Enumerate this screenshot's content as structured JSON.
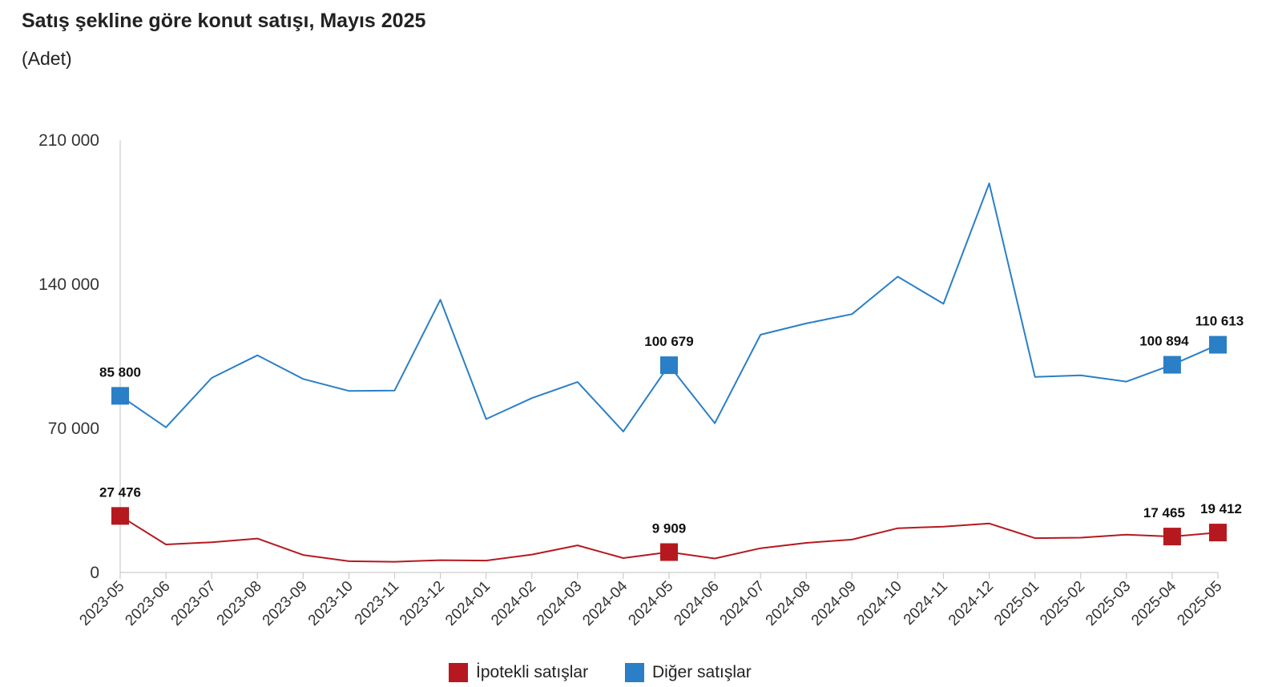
{
  "chart_data": {
    "type": "line",
    "title": "Satış şekline göre konut satışı, Mayıs 2025",
    "subtitle": "(Adet)",
    "xlabel": "",
    "ylabel": "",
    "ylim": [
      0,
      210000
    ],
    "yticks": [
      0,
      70000,
      140000,
      210000
    ],
    "ytick_labels": [
      "0",
      "70 000",
      "140 000",
      "210 000"
    ],
    "grid": false,
    "legend_position": "bottom-center",
    "categories": [
      "2023-05",
      "2023-06",
      "2023-07",
      "2023-08",
      "2023-09",
      "2023-10",
      "2023-11",
      "2023-12",
      "2024-01",
      "2024-02",
      "2024-03",
      "2024-04",
      "2024-05",
      "2024-06",
      "2024-07",
      "2024-08",
      "2024-09",
      "2024-10",
      "2024-11",
      "2024-12",
      "2025-01",
      "2025-02",
      "2025-03",
      "2025-04",
      "2025-05"
    ],
    "series": [
      {
        "name": "İpotekli satışlar",
        "color": "#b5191f",
        "values": [
          27476,
          13600,
          14700,
          16500,
          8500,
          5500,
          5200,
          6000,
          5800,
          8700,
          13200,
          7000,
          9909,
          6800,
          11800,
          14400,
          16000,
          21500,
          22300,
          23800,
          16700,
          16900,
          18400,
          17465,
          19412
        ],
        "labels": [
          {
            "index": 0,
            "text": "27 476"
          },
          {
            "index": 12,
            "text": "9 909"
          },
          {
            "index": 23,
            "text": "17 465"
          },
          {
            "index": 24,
            "text": "19 412"
          }
        ]
      },
      {
        "name": "Diğer satışlar",
        "color": "#2a7fc6",
        "values": [
          85800,
          70500,
          94500,
          105500,
          94000,
          88200,
          88400,
          132500,
          74500,
          84700,
          92500,
          68500,
          100679,
          72500,
          115500,
          121000,
          125500,
          143700,
          130500,
          189000,
          95000,
          95800,
          92700,
          100894,
          110613
        ],
        "labels": [
          {
            "index": 0,
            "text": "85 800"
          },
          {
            "index": 12,
            "text": "100 679"
          },
          {
            "index": 23,
            "text": "100 894"
          },
          {
            "index": 24,
            "text": "110 613"
          }
        ]
      }
    ]
  }
}
